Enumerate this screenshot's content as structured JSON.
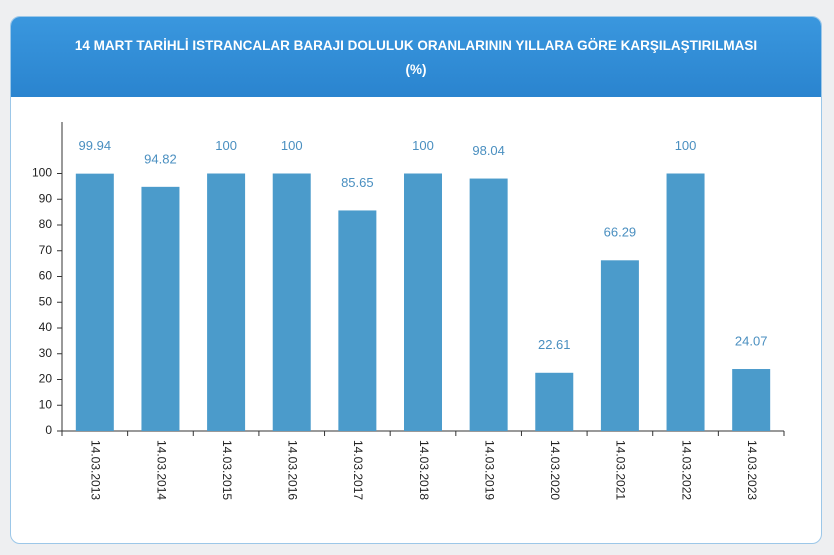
{
  "chart_data": {
    "type": "bar",
    "title": "14 MART TARİHLİ ISTRANCALAR BARAJI DOLULUK ORANLARININ YILLARA GÖRE KARŞILAŞTIRILMASI",
    "subtitle": "(%)",
    "categories": [
      "14.03.2013",
      "14.03.2014",
      "14.03.2015",
      "14.03.2016",
      "14.03.2017",
      "14.03.2018",
      "14.03.2019",
      "14.03.2020",
      "14.03.2021",
      "14.03.2022",
      "14.03.2023"
    ],
    "values": [
      99.94,
      94.82,
      100,
      100,
      85.65,
      100,
      98.04,
      22.61,
      66.29,
      100,
      24.07
    ],
    "color": "#4b9bcb",
    "ylim": [
      0,
      120
    ],
    "yticks": [
      0,
      10,
      20,
      30,
      40,
      50,
      60,
      70,
      80,
      90,
      100
    ],
    "grid": false
  }
}
